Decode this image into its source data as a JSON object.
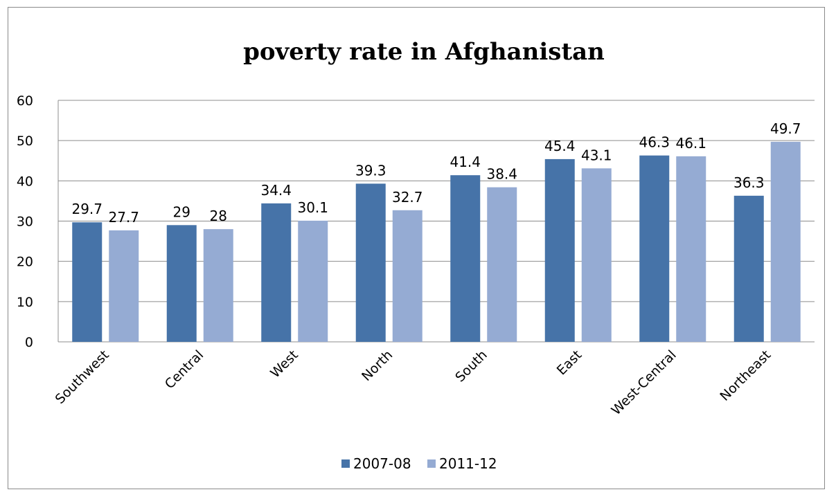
{
  "chart_data": {
    "type": "bar",
    "title": "poverty rate in Afghanistan",
    "categories": [
      "Southwest",
      "Central",
      "West",
      "North",
      "South",
      "East",
      "West-Central",
      "Northeast"
    ],
    "series": [
      {
        "name": "2007-08",
        "color": "#4673a8",
        "values": [
          29.7,
          29,
          34.4,
          39.3,
          41.4,
          45.4,
          46.3,
          36.3
        ]
      },
      {
        "name": "2011-12",
        "color": "#95abd3",
        "values": [
          27.7,
          28,
          30.1,
          32.7,
          38.4,
          43.1,
          46.1,
          49.7
        ]
      }
    ],
    "ylim": [
      0,
      60
    ],
    "yticks": [
      0,
      10,
      20,
      30,
      40,
      50,
      60
    ],
    "grid": true,
    "legend_position": "bottom",
    "data_labels": true
  }
}
